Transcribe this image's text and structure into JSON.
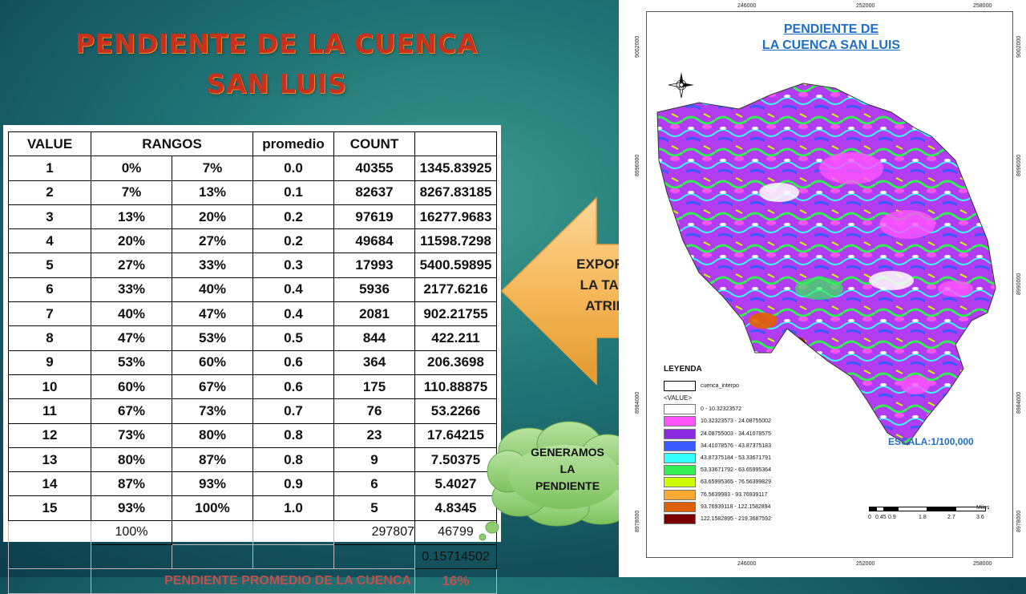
{
  "slide": {
    "title_line1": "PENDIENTE DE LA CUENCA",
    "title_line2": "SAN LUIS"
  },
  "table": {
    "headers": [
      "VALUE",
      "RANGOS",
      "promedio",
      "COUNT",
      ""
    ],
    "rows": [
      [
        "1",
        "0%",
        "7%",
        "0.0",
        "40355",
        "1345.83925"
      ],
      [
        "2",
        "7%",
        "13%",
        "0.1",
        "82637",
        "8267.83185"
      ],
      [
        "3",
        "13%",
        "20%",
        "0.2",
        "97619",
        "16277.9683"
      ],
      [
        "4",
        "20%",
        "27%",
        "0.2",
        "49684",
        "11598.7298"
      ],
      [
        "5",
        "27%",
        "33%",
        "0.3",
        "17993",
        "5400.59895"
      ],
      [
        "6",
        "33%",
        "40%",
        "0.4",
        "5936",
        "2177.6216"
      ],
      [
        "7",
        "40%",
        "47%",
        "0.4",
        "2081",
        "902.21755"
      ],
      [
        "8",
        "47%",
        "53%",
        "0.5",
        "844",
        "422.211"
      ],
      [
        "9",
        "53%",
        "60%",
        "0.6",
        "364",
        "206.3698"
      ],
      [
        "10",
        "60%",
        "67%",
        "0.6",
        "175",
        "110.88875"
      ],
      [
        "11",
        "67%",
        "73%",
        "0.7",
        "76",
        "53.2266"
      ],
      [
        "12",
        "73%",
        "80%",
        "0.8",
        "23",
        "17.64215"
      ],
      [
        "13",
        "80%",
        "87%",
        "0.8",
        "9",
        "7.50375"
      ],
      [
        "14",
        "87%",
        "93%",
        "0.9",
        "6",
        "5.4027"
      ],
      [
        "15",
        "93%",
        "100%",
        "1.0",
        "5",
        "4.8345"
      ]
    ],
    "total_pct": "100%",
    "total_count": "297807",
    "total_sum": "46799",
    "ratio": "0.15714502",
    "promedio_label": "PENDIENTE PROMEDIO DE LA CUENCA",
    "promedio_value": "16%"
  },
  "arrow_callout": {
    "line1": "EXPORTAMOS",
    "line2": "LA TABLA DE",
    "line3": "ATRIBUTOS"
  },
  "cloud_callout": {
    "line1": "GENERAMOS",
    "line2": "LA",
    "line3": "PENDIENTE"
  },
  "map": {
    "title_line1": "PENDIENTE DE",
    "title_line2": "LA CUENCA SAN LUIS",
    "coords_top": [
      "246000",
      "252000",
      "258000"
    ],
    "coords_bottom": [
      "246000",
      "252000",
      "258000"
    ],
    "coords_left": [
      "9002000",
      "8996000",
      "8984000",
      "8978000"
    ],
    "coords_right": [
      "9002000",
      "8996000",
      "8990000",
      "8984000",
      "8978000"
    ],
    "legend_title": "LEYENDA",
    "legend_layer": "cuenca_interpo",
    "legend_value_header": "<VALUE>",
    "legend_items": [
      {
        "label": "0 - 10.32323572",
        "color": "#ffffff"
      },
      {
        "label": "10.32323573 - 24.08755002",
        "color": "#ff55ff"
      },
      {
        "label": "24.08755003 - 34.41078575",
        "color": "#8a2be2"
      },
      {
        "label": "34.41078576 - 43.87375183",
        "color": "#3a5cff"
      },
      {
        "label": "43.87375184 - 53.33671791",
        "color": "#33ffff"
      },
      {
        "label": "53.33671792 - 63.65995364",
        "color": "#33ee55"
      },
      {
        "label": "63.65995365 - 76.56399829",
        "color": "#ccff00"
      },
      {
        "label": "76.5639983 - 93.76939117",
        "color": "#ffaa33"
      },
      {
        "label": "93.76939118 - 122.1582894",
        "color": "#e06000"
      },
      {
        "label": "122.1582895 - 219.3687592",
        "color": "#7a0000"
      }
    ],
    "escala": "ESCALA:1/100,000",
    "scale_labels": [
      "0",
      "0.45",
      "0.9",
      "1.8",
      "2.7",
      "3.6"
    ],
    "scale_unit": "Miles"
  }
}
